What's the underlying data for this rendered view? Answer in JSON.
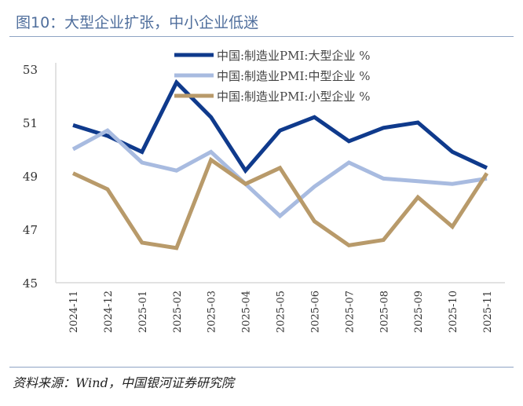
{
  "title": "图10：大型企业扩张，中小企业低迷",
  "source": "资料来源：Wind，中国银河证券研究院",
  "chart_data": {
    "type": "line",
    "categories": [
      "2024-11",
      "2024-12",
      "2025-01",
      "2025-02",
      "2025-03",
      "2025-04",
      "2025-05",
      "2025-06",
      "2025-07",
      "2025-08",
      "2025-09",
      "2025-10",
      "2025-11"
    ],
    "yticks": [
      45,
      47,
      49,
      51,
      53
    ],
    "ylim": [
      45,
      53
    ],
    "grid": false,
    "legend": "top-right",
    "series": [
      {
        "name": "中国:制造业PMI:大型企业 %",
        "color": "#0f3a8c",
        "values": [
          50.9,
          50.5,
          49.9,
          52.5,
          51.2,
          49.2,
          50.7,
          51.2,
          50.3,
          50.8,
          51.0,
          49.9,
          49.3
        ]
      },
      {
        "name": "中国:制造业PMI:中型企业 %",
        "color": "#a8bbe0",
        "values": [
          50.0,
          50.7,
          49.5,
          49.2,
          49.9,
          48.7,
          47.5,
          48.6,
          49.5,
          48.9,
          48.8,
          48.7,
          48.9
        ]
      },
      {
        "name": "中国:制造业PMI:小型企业 %",
        "color": "#b89a6a",
        "values": [
          49.1,
          48.5,
          46.5,
          46.3,
          49.6,
          48.7,
          49.3,
          47.3,
          46.4,
          46.6,
          48.2,
          47.1,
          49.1
        ]
      }
    ]
  }
}
